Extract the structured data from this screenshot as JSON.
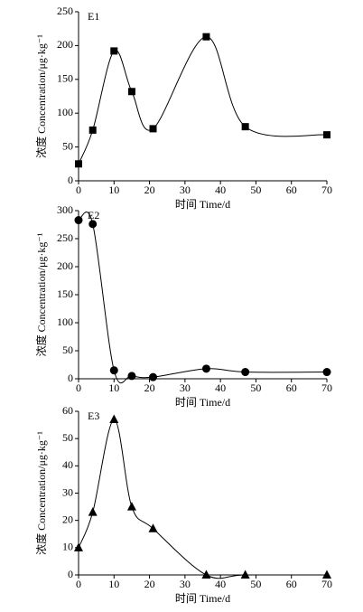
{
  "chart_data": [
    {
      "type": "line",
      "title": "E1",
      "x_label": "时间 Time/d",
      "y_label": "浓度 Concentration/μg·kg⁻¹",
      "x": [
        0,
        4,
        10,
        15,
        21,
        36,
        47,
        70
      ],
      "values": [
        25,
        75,
        192,
        132,
        77,
        213,
        80,
        68
      ],
      "color": "#000000",
      "marker": "square",
      "xlim": [
        0,
        70
      ],
      "xticks": [
        0,
        10,
        20,
        30,
        40,
        50,
        60,
        70
      ],
      "ylim": [
        0,
        250
      ],
      "yticks": [
        0,
        50,
        100,
        150,
        200,
        250
      ]
    },
    {
      "type": "line",
      "title": "E2",
      "x_label": "时间 Time/d",
      "y_label": "浓度 Concentration/μg·kg⁻¹",
      "x": [
        0,
        4,
        10,
        15,
        21,
        36,
        47,
        70
      ],
      "values": [
        283,
        276,
        15,
        5,
        3,
        18,
        12,
        12
      ],
      "color": "#000000",
      "marker": "circle",
      "xlim": [
        0,
        70
      ],
      "xticks": [
        0,
        10,
        20,
        30,
        40,
        50,
        60,
        70
      ],
      "ylim": [
        0,
        300
      ],
      "yticks": [
        0,
        50,
        100,
        150,
        200,
        250,
        300
      ]
    },
    {
      "type": "line",
      "title": "E3",
      "x_label": "时间 Time/d",
      "y_label": "浓度 Concentration/μg·kg⁻¹",
      "x": [
        0,
        4,
        10,
        15,
        21,
        36,
        47,
        70
      ],
      "values": [
        10,
        23,
        57,
        25,
        17,
        0,
        0,
        0
      ],
      "color": "#000000",
      "marker": "triangle",
      "xlim": [
        0,
        70
      ],
      "xticks": [
        0,
        10,
        20,
        30,
        40,
        50,
        60,
        70
      ],
      "ylim": [
        0,
        60
      ],
      "yticks": [
        0,
        10,
        20,
        30,
        40,
        50,
        60
      ]
    }
  ]
}
